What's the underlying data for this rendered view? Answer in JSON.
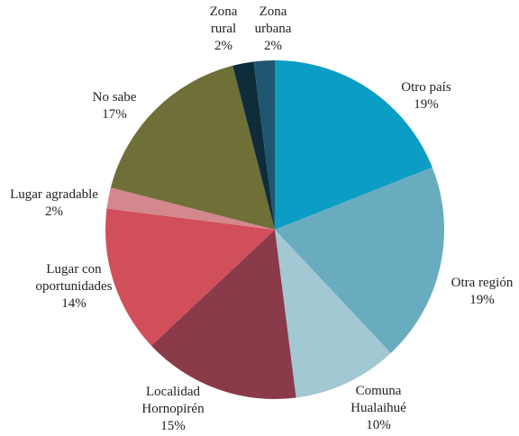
{
  "chart_data": {
    "type": "pie",
    "categories": [
      "Otro país",
      "Otra región",
      "Comuna Hualaihué",
      "Localidad Hornopirén",
      "Lugar con oportunidades",
      "Lugar agradable",
      "No sabe",
      "Zona rural",
      "Zona urbana"
    ],
    "values": [
      19,
      19,
      10,
      15,
      14,
      2,
      17,
      2,
      2
    ],
    "value_labels": [
      "19%",
      "19%",
      "10%",
      "15%",
      "14%",
      "2%",
      "17%",
      "2%",
      "2%"
    ],
    "colors": [
      "#0b9dc4",
      "#6aacbf",
      "#a2c8d3",
      "#8b3a4a",
      "#d14f5b",
      "#d4878c",
      "#6f6f38",
      "#0f2c3a",
      "#1e5670"
    ]
  }
}
